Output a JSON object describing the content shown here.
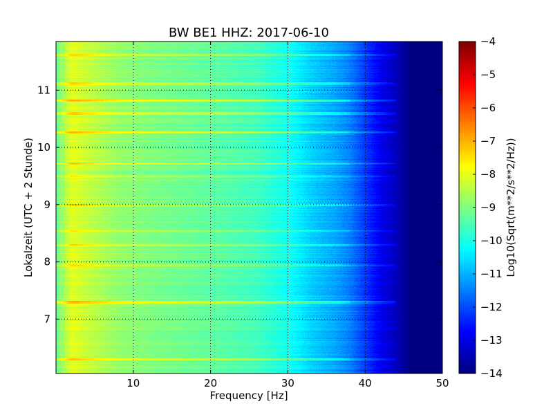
{
  "chart_data": {
    "type": "heatmap",
    "title": "BW BE1 HHZ: 2017-06-10",
    "xlabel": "Frequency [Hz]",
    "ylabel": "Lokalzeit (UTC + 2 Stunde)",
    "xlim": [
      0,
      50
    ],
    "ylim": [
      11.85,
      6.05
    ],
    "xticks": [
      10,
      20,
      30,
      40,
      50
    ],
    "yticks": [
      7,
      8,
      9,
      10,
      11
    ],
    "grid": true,
    "colormap": "jet",
    "colorbar": {
      "label": "Log10(Sqrt(m**2/s**2/Hz))",
      "range": [
        -14,
        -4
      ],
      "ticks": [
        -4,
        -5,
        -6,
        -7,
        -8,
        -9,
        -10,
        -11,
        -12,
        -13,
        -14
      ]
    },
    "spectral_profile": {
      "frequency_hz": [
        0,
        2,
        4,
        8,
        12,
        20,
        26,
        30,
        33,
        36,
        38,
        40,
        42,
        44,
        45,
        46,
        50
      ],
      "log_amplitude": [
        -9.2,
        -8.0,
        -8.3,
        -8.8,
        -9.0,
        -9.3,
        -9.6,
        -10.1,
        -10.7,
        -11.1,
        -11.5,
        -12.2,
        -12.9,
        -13.4,
        -13.7,
        -14,
        -14
      ]
    },
    "bright_bands": [
      {
        "time": 6.3,
        "boost": 0.9
      },
      {
        "time": 7.3,
        "boost": 1.1
      },
      {
        "time": 7.95,
        "boost": 0.6
      },
      {
        "time": 8.3,
        "boost": 0.6
      },
      {
        "time": 8.55,
        "boost": 0.5
      },
      {
        "time": 9.0,
        "boost": 0.9
      },
      {
        "time": 9.5,
        "boost": 0.4
      },
      {
        "time": 9.72,
        "boost": 0.8
      },
      {
        "time": 10.27,
        "boost": 0.9
      },
      {
        "time": 10.6,
        "boost": 0.7
      },
      {
        "time": 10.82,
        "boost": 1.1
      },
      {
        "time": 11.12,
        "boost": 0.8
      },
      {
        "time": 11.62,
        "boost": 0.7
      }
    ]
  }
}
